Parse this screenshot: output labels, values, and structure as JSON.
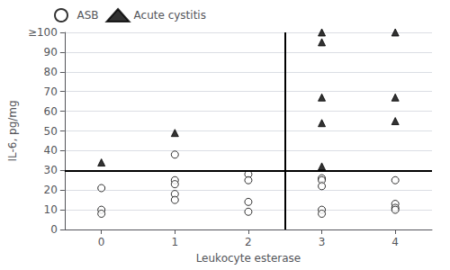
{
  "chart_data": {
    "type": "scatter",
    "xlabel": "Leukocyte esterase",
    "ylabel": "IL-6, pg/mg",
    "xlim": [
      -0.5,
      4.5
    ],
    "xticks": [
      0,
      1,
      2,
      3,
      4
    ],
    "ylim": [
      0,
      100
    ],
    "yticks": [
      0,
      10,
      20,
      30,
      40,
      50,
      60,
      70,
      80,
      90,
      {
        "value": 100,
        "label": "≥100"
      }
    ],
    "grid": true,
    "legend": "upper left",
    "cutoff_x": 2.5,
    "cutoff_y": 30,
    "series": [
      {
        "name": "ASB",
        "color": "white",
        "marker": "circle",
        "x": [
          0,
          0,
          0,
          1,
          1,
          1,
          1,
          1,
          2,
          2,
          2,
          2,
          3,
          3,
          3,
          3,
          3,
          4,
          4,
          4,
          4
        ],
        "values": [
          21,
          10,
          8,
          38,
          25,
          23,
          18,
          15,
          28,
          25,
          14,
          9,
          26,
          25,
          22,
          10,
          8,
          25,
          13,
          11,
          10
        ]
      },
      {
        "name": "Acute cystitis",
        "color": "black",
        "marker": "triangle",
        "x": [
          0,
          1,
          3,
          3,
          3,
          3,
          3,
          4,
          4,
          4
        ],
        "values": [
          34,
          49,
          100,
          95,
          67,
          54,
          32,
          100,
          67,
          55
        ]
      }
    ]
  }
}
